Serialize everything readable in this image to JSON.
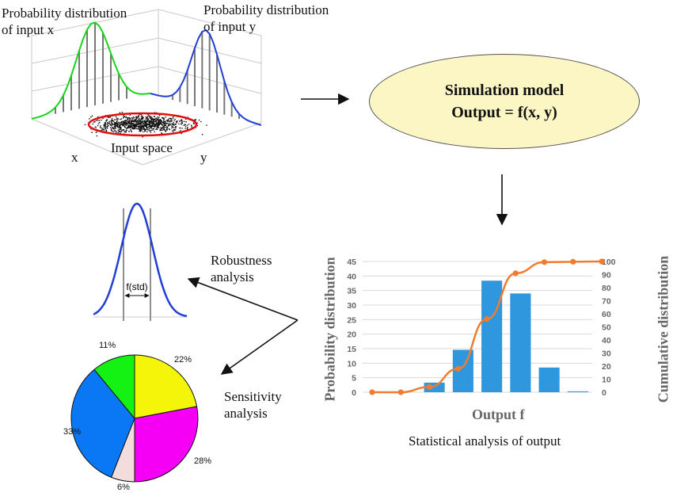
{
  "input_panel": {
    "label_x_dist_line1": "Probability distribution",
    "label_x_dist_line2": "of input x",
    "label_y_dist_line1": "Probability distribution",
    "label_y_dist_line2": "of input y",
    "input_space_label": "Input space",
    "axis_x": "x",
    "axis_y": "y"
  },
  "model": {
    "line1": "Simulation model",
    "line2": "Output = f(x, y)"
  },
  "robustness": {
    "label_line1": "Robustness",
    "label_line2": "analysis",
    "std_label": "f(std)"
  },
  "sensitivity": {
    "label_line1": "Sensitivity",
    "label_line2": "analysis",
    "pie_labels": [
      "22%",
      "28%",
      "6%",
      "33%",
      "11%"
    ]
  },
  "colors": {
    "green": "#17d617",
    "blue": "#1f3fd6",
    "red": "#e01010",
    "bar_blue": "#2f97dd",
    "line_orange": "#ee7d31",
    "ellipse_fill": "#fcf6c4",
    "pie_yellow": "#f5f50a",
    "pie_magenta": "#f500f5",
    "pie_pink": "#f3dcdc",
    "pie_blue": "#0a78f5",
    "pie_green": "#14f214"
  },
  "output_chart": {
    "caption": "Statistical analysis of output"
  },
  "chart_data": {
    "type": "bar",
    "xlabel": "Output f",
    "ylabel": "Probability distribution",
    "y2label": "Cumulative distribution",
    "ylim": [
      0,
      45
    ],
    "y2lim": [
      0,
      100
    ],
    "yticks": [
      "0",
      "5",
      "10",
      "15",
      "20",
      "25",
      "30",
      "35",
      "40",
      "45"
    ],
    "y2ticks": [
      "0",
      "10",
      "20",
      "30",
      "40",
      "50",
      "60",
      "70",
      "80",
      "90",
      "100"
    ],
    "grid": true,
    "series": [
      {
        "type": "bar",
        "values": [
          0,
          0,
          3.3,
          14.6,
          38.4,
          34.0,
          8.5,
          0.3
        ]
      },
      {
        "type": "line",
        "axis": "right",
        "values": [
          0,
          0,
          4,
          18,
          56,
          91,
          99.5,
          99.8,
          100.0
        ]
      }
    ],
    "pie": {
      "type": "pie",
      "values": [
        22,
        28,
        6,
        33,
        11
      ],
      "labels": [
        "22%",
        "28%",
        "6%",
        "33%",
        "11%"
      ]
    }
  }
}
